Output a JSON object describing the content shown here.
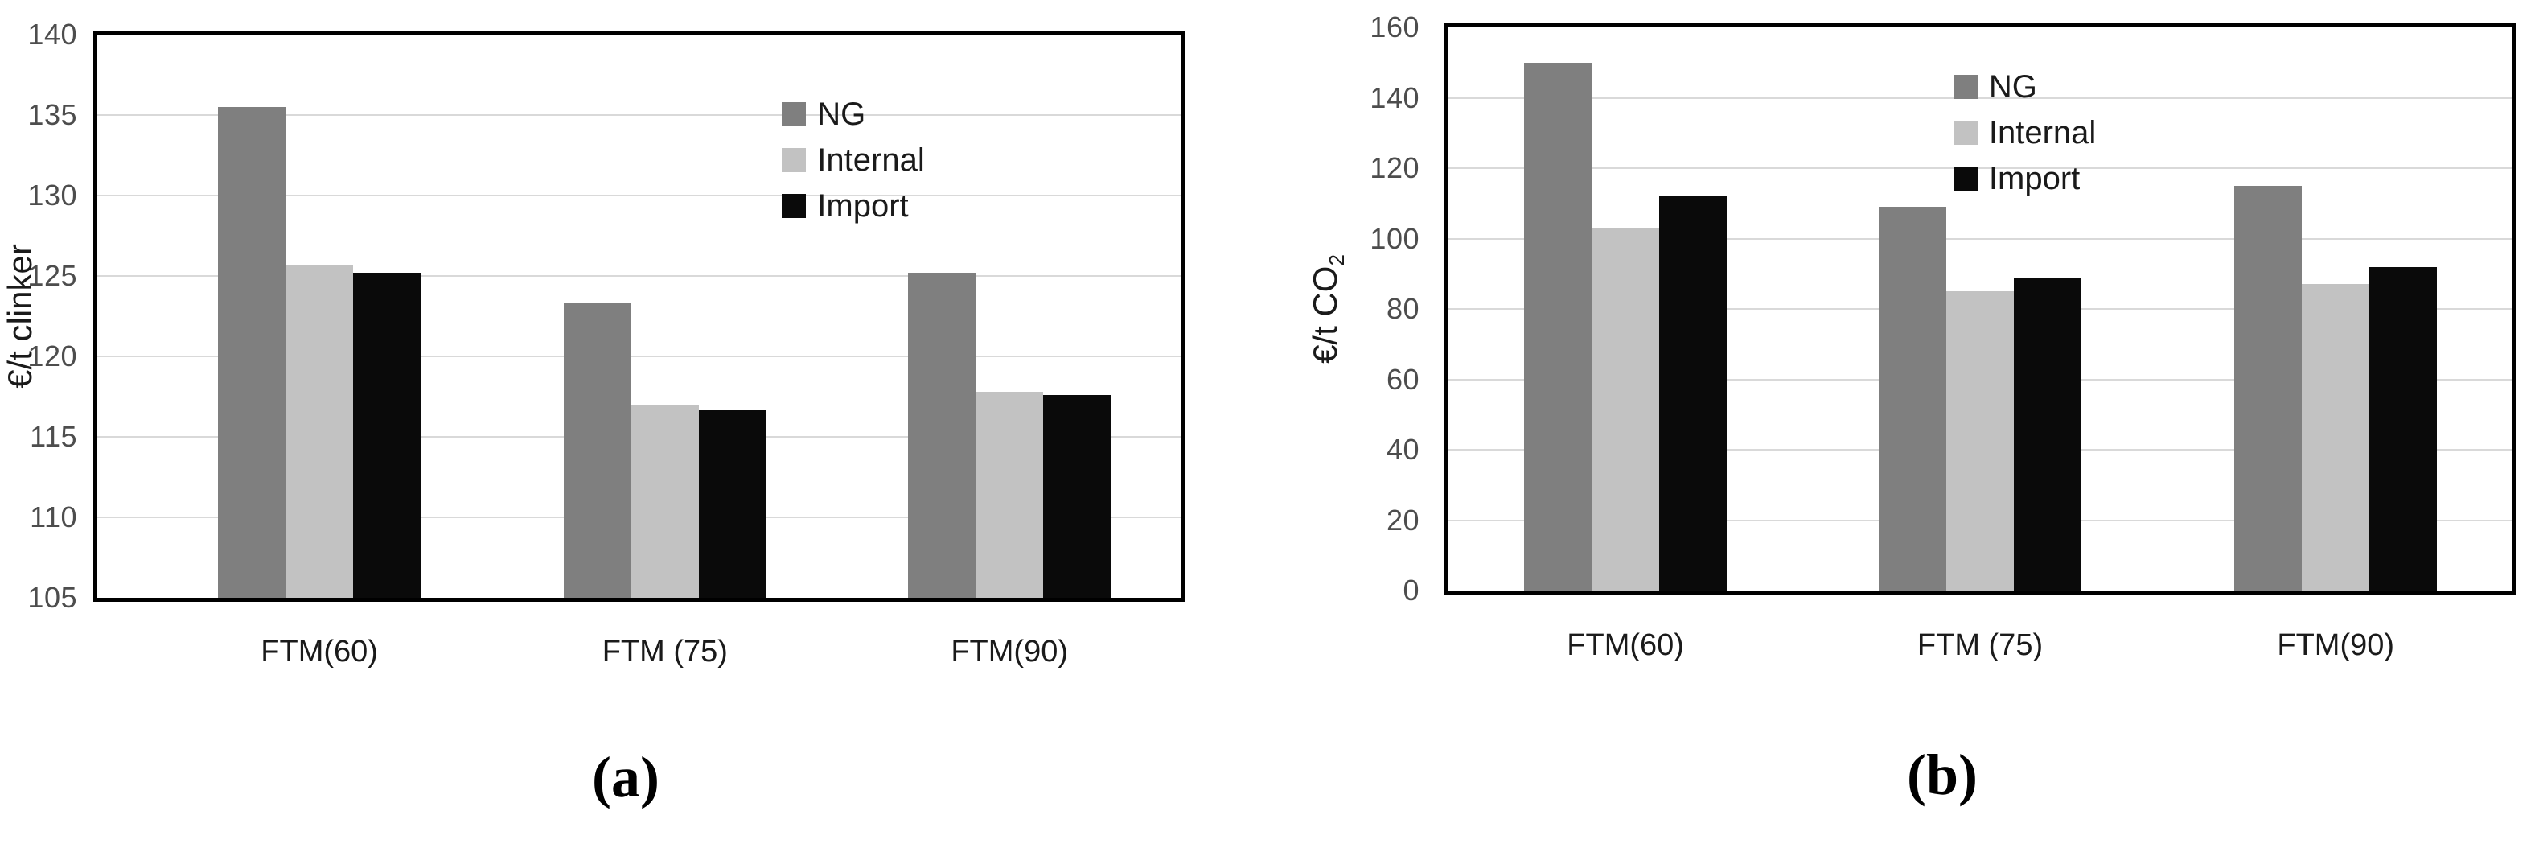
{
  "figure": {
    "captions": {
      "a": "(a)",
      "b": "(b)"
    }
  },
  "colors": {
    "background": "#ffffff",
    "plot_border": "#000000",
    "gridline": "#d9d9d9",
    "tick_label": "#4d4d4d",
    "category_label": "#1a1a1a",
    "legend_text": "#1a1a1a",
    "axis_title": "#1a1a1a",
    "caption": "#000000"
  },
  "chart_data": [
    {
      "id": "a",
      "type": "bar",
      "caption": "(a)",
      "ylabel": {
        "text": "€/t clinker",
        "sub": ""
      },
      "categories": [
        "FTM(60)",
        "FTM (75)",
        "FTM(90)"
      ],
      "series": [
        {
          "name": "NG",
          "color": "#7f7f7f",
          "values": [
            135.5,
            123.3,
            125.2
          ]
        },
        {
          "name": "Internal",
          "color": "#c2c2c2",
          "values": [
            125.7,
            117.0,
            117.8
          ]
        },
        {
          "name": "Import",
          "color": "#0a0a0a",
          "values": [
            125.2,
            116.7,
            117.6
          ]
        }
      ],
      "ylim": [
        105,
        140
      ],
      "yticks": [
        105,
        110,
        115,
        120,
        125,
        130,
        135,
        140
      ],
      "grid": true,
      "legend_position": "inside-upper-right"
    },
    {
      "id": "b",
      "type": "bar",
      "caption": "(b)",
      "ylabel": {
        "text": "€/t CO",
        "sub": "2"
      },
      "categories": [
        "FTM(60)",
        "FTM (75)",
        "FTM(90)"
      ],
      "series": [
        {
          "name": "NG",
          "color": "#7f7f7f",
          "values": [
            150,
            109,
            115
          ]
        },
        {
          "name": "Internal",
          "color": "#c2c2c2",
          "values": [
            103,
            85,
            87
          ]
        },
        {
          "name": "Import",
          "color": "#0a0a0a",
          "values": [
            112,
            89,
            92
          ]
        }
      ],
      "ylim": [
        0,
        160
      ],
      "yticks": [
        0,
        20,
        40,
        60,
        80,
        100,
        120,
        140,
        160
      ],
      "grid": true,
      "legend_position": "inside-upper-center"
    }
  ]
}
